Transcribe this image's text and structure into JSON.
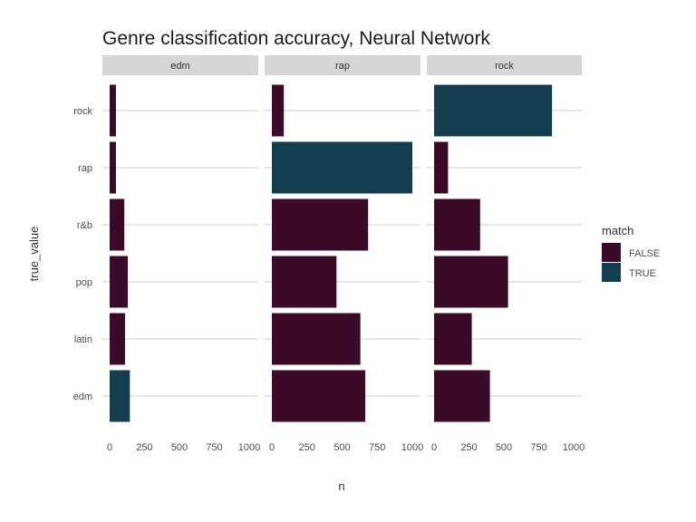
{
  "chart_data": {
    "type": "bar",
    "orientation": "horizontal",
    "title": "Genre classification accuracy, Neural Network",
    "xlabel": "n",
    "ylabel": "true_value",
    "xlim": [
      0,
      1000
    ],
    "x_ticks": [
      "0",
      "250",
      "500",
      "750",
      "1000"
    ],
    "categories": [
      "edm",
      "latin",
      "pop",
      "r&b",
      "rap",
      "rock"
    ],
    "grid": "horizontal",
    "legend": {
      "title": "match",
      "placement": "right",
      "entries": [
        {
          "label": "FALSE",
          "color": "#3b0a26"
        },
        {
          "label": "TRUE",
          "color": "#143d4d"
        }
      ]
    },
    "colors": {
      "false": "#3b0a26",
      "true": "#143d4d",
      "strip": "#d6d6d6",
      "grid": "#cccccc"
    },
    "facets": [
      {
        "name": "edm",
        "bars": [
          {
            "category": "edm",
            "value": 145,
            "match": "TRUE"
          },
          {
            "category": "latin",
            "value": 110,
            "match": "FALSE"
          },
          {
            "category": "pop",
            "value": 130,
            "match": "FALSE"
          },
          {
            "category": "r&b",
            "value": 105,
            "match": "FALSE"
          },
          {
            "category": "rap",
            "value": 45,
            "match": "FALSE"
          },
          {
            "category": "rock",
            "value": 45,
            "match": "FALSE"
          }
        ]
      },
      {
        "name": "rap",
        "bars": [
          {
            "category": "edm",
            "value": 665,
            "match": "FALSE"
          },
          {
            "category": "latin",
            "value": 630,
            "match": "FALSE"
          },
          {
            "category": "pop",
            "value": 460,
            "match": "FALSE"
          },
          {
            "category": "r&b",
            "value": 685,
            "match": "FALSE"
          },
          {
            "category": "rap",
            "value": 1000,
            "match": "TRUE"
          },
          {
            "category": "rock",
            "value": 85,
            "match": "FALSE"
          }
        ]
      },
      {
        "name": "rock",
        "bars": [
          {
            "category": "edm",
            "value": 400,
            "match": "FALSE"
          },
          {
            "category": "latin",
            "value": 270,
            "match": "FALSE"
          },
          {
            "category": "pop",
            "value": 530,
            "match": "FALSE"
          },
          {
            "category": "r&b",
            "value": 330,
            "match": "FALSE"
          },
          {
            "category": "rap",
            "value": 100,
            "match": "FALSE"
          },
          {
            "category": "rock",
            "value": 845,
            "match": "TRUE"
          }
        ]
      }
    ]
  }
}
